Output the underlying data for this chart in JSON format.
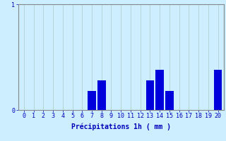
{
  "xlabel": "Précipitations 1h ( mm )",
  "x_categories": [
    0,
    1,
    2,
    3,
    4,
    5,
    6,
    7,
    8,
    9,
    10,
    11,
    12,
    13,
    14,
    15,
    16,
    17,
    18,
    19,
    20
  ],
  "values": [
    0,
    0,
    0,
    0,
    0,
    0,
    0,
    0.18,
    0.28,
    0,
    0,
    0,
    0,
    0.28,
    0.38,
    0.18,
    0,
    0,
    0,
    0,
    0.38
  ],
  "bar_color": "#0000dd",
  "background_color": "#cceeff",
  "grid_color": "#aacccc",
  "axis_color": "#888888",
  "text_color": "#0000bb",
  "ylim": [
    0,
    1.0
  ],
  "yticks": [
    0,
    1
  ],
  "xlabel_fontsize": 7,
  "tick_fontsize": 6
}
